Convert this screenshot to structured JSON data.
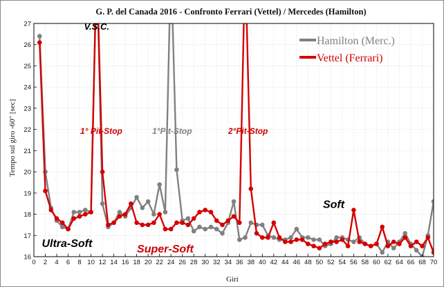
{
  "chart_data": {
    "type": "line",
    "title": "G. P. del Canada 2016 - Confronto Ferrari (Vettel) / Mercedes (Hamilton)",
    "xlabel": "Giri",
    "ylabel": "Tempo sul giro -60\" [sec]",
    "xlim": [
      0,
      70
    ],
    "ylim": [
      16,
      27
    ],
    "xticks": [
      "0",
      "2",
      "4",
      "6",
      "8",
      "10",
      "12",
      "14",
      "16",
      "18",
      "20",
      "22",
      "24",
      "26",
      "28",
      "30",
      "32",
      "34",
      "36",
      "38",
      "40",
      "42",
      "44",
      "46",
      "48",
      "50",
      "52",
      "54",
      "56",
      "58",
      "60",
      "62",
      "64",
      "66",
      "68",
      "70"
    ],
    "yticks": [
      "16",
      "17",
      "18",
      "19",
      "20",
      "21",
      "22",
      "23",
      "24",
      "25",
      "26",
      "27"
    ],
    "grid": true,
    "legend_position": "top-right",
    "series": [
      {
        "name": "Hamilton (Merc.)",
        "color": "#808080",
        "x": [
          1,
          2,
          3,
          4,
          5,
          6,
          7,
          8,
          9,
          10,
          11,
          12,
          13,
          14,
          15,
          16,
          17,
          18,
          19,
          20,
          21,
          22,
          23,
          24,
          25,
          26,
          27,
          28,
          29,
          30,
          31,
          32,
          33,
          34,
          35,
          36,
          37,
          38,
          39,
          40,
          41,
          42,
          43,
          44,
          45,
          46,
          47,
          48,
          49,
          50,
          51,
          52,
          53,
          54,
          55,
          56,
          57,
          58,
          59,
          60,
          61,
          62,
          63,
          64,
          65,
          66,
          67,
          68,
          69,
          70
        ],
        "values": [
          26.4,
          20.0,
          18.3,
          17.7,
          17.4,
          17.3,
          18.1,
          18.1,
          18.2,
          18.1,
          30.0,
          18.5,
          17.4,
          17.6,
          18.1,
          17.9,
          18.3,
          18.8,
          18.3,
          18.6,
          18.0,
          19.4,
          18.1,
          30.0,
          20.1,
          17.7,
          17.8,
          17.2,
          17.4,
          17.3,
          17.4,
          17.3,
          17.1,
          17.6,
          18.6,
          16.8,
          16.9,
          17.6,
          17.5,
          17.5,
          17.0,
          16.9,
          16.8,
          16.8,
          16.9,
          17.3,
          16.9,
          16.9,
          16.8,
          16.8,
          16.5,
          16.6,
          16.9,
          16.9,
          16.8,
          16.7,
          16.9,
          16.6,
          16.5,
          16.6,
          16.2,
          16.7,
          16.4,
          16.7,
          17.1,
          16.6,
          16.3,
          16.0,
          17.0,
          18.6
        ]
      },
      {
        "name": "Vettel (Ferrari)",
        "color": "#d40000",
        "x": [
          1,
          2,
          3,
          4,
          5,
          6,
          7,
          8,
          9,
          10,
          11,
          12,
          13,
          14,
          15,
          16,
          17,
          18,
          19,
          20,
          21,
          22,
          23,
          24,
          25,
          26,
          27,
          28,
          29,
          30,
          31,
          32,
          33,
          34,
          35,
          36,
          37,
          38,
          39,
          40,
          41,
          42,
          43,
          44,
          45,
          46,
          47,
          48,
          49,
          50,
          51,
          52,
          53,
          54,
          55,
          56,
          57,
          58,
          59,
          60,
          61,
          62,
          63,
          64,
          65,
          66,
          67,
          68,
          69,
          70
        ],
        "values": [
          26.1,
          19.1,
          18.2,
          17.8,
          17.6,
          17.3,
          17.8,
          17.9,
          18.0,
          18.1,
          30.0,
          20.0,
          17.5,
          17.6,
          17.9,
          18.0,
          18.5,
          17.6,
          17.5,
          17.5,
          17.6,
          18.0,
          17.3,
          17.3,
          17.6,
          17.6,
          17.5,
          17.8,
          18.1,
          18.2,
          18.1,
          17.7,
          17.5,
          17.7,
          17.9,
          17.6,
          30.0,
          19.2,
          17.1,
          16.9,
          16.9,
          17.6,
          16.9,
          16.7,
          16.7,
          16.8,
          16.8,
          16.6,
          16.5,
          16.4,
          16.6,
          16.7,
          16.7,
          16.8,
          16.5,
          18.2,
          16.7,
          16.6,
          16.5,
          16.6,
          17.4,
          16.5,
          16.7,
          16.6,
          16.9,
          16.5,
          16.7,
          16.5,
          16.9,
          16.2
        ]
      }
    ],
    "annotations": [
      {
        "text": "V.S.C.",
        "x": 11,
        "y": 26.7,
        "color": "#000000",
        "size": 13
      },
      {
        "text": "1° Pit-Stop",
        "x": 11.8,
        "y": 21.8,
        "color": "#cc0000",
        "size": 12
      },
      {
        "text": "1°Pit-Stop",
        "x": 24.2,
        "y": 21.8,
        "color": "#808080",
        "size": 12
      },
      {
        "text": "2°Pit-Stop",
        "x": 37.5,
        "y": 21.8,
        "color": "#cc0000",
        "size": 12
      },
      {
        "text": "Ultra-Soft",
        "x": 5.8,
        "y": 16.45,
        "color": "#000000",
        "size": 16
      },
      {
        "text": "Super-Soft",
        "x": 23,
        "y": 16.2,
        "color": "#cc0000",
        "size": 16
      },
      {
        "text": "Soft",
        "x": 52.5,
        "y": 18.3,
        "color": "#000000",
        "size": 16
      }
    ]
  }
}
